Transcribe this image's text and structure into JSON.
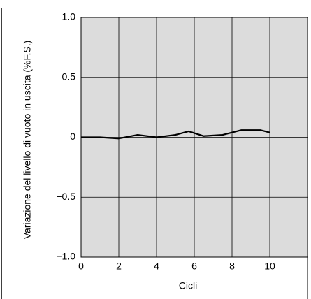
{
  "chart_data": {
    "type": "line",
    "x_label": "Cicli",
    "y_label": "Variazione del livello di vuoto in uscita  (%F.S.)",
    "xlim": [
      0,
      12
    ],
    "xticks": [
      0,
      2,
      4,
      6,
      8,
      10
    ],
    "ylim": [
      -1.0,
      1.0
    ],
    "yticks": [
      {
        "value": -1.0,
        "label": "−1.0"
      },
      {
        "value": -0.5,
        "label": "−0.5"
      },
      0,
      {
        "value": 0.5,
        "label": "0.5"
      },
      {
        "value": 1.0,
        "label": "1.0"
      }
    ],
    "grid": true,
    "plot_background": "#dcdcdc",
    "series": [
      {
        "color": "#000000",
        "x": [
          0,
          1,
          2,
          3,
          4,
          5,
          5.7,
          6.5,
          7.5,
          8.5,
          9.5,
          10
        ],
        "values": [
          0,
          0,
          -0.01,
          0.02,
          0.0,
          0.02,
          0.05,
          0.01,
          0.02,
          0.06,
          0.06,
          0.04
        ]
      }
    ]
  }
}
